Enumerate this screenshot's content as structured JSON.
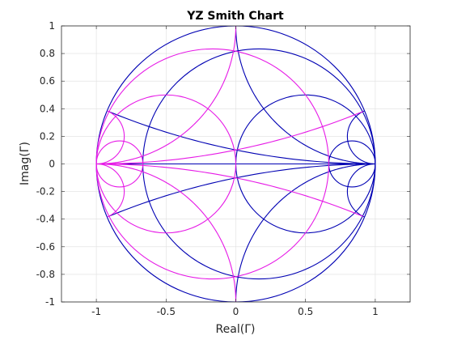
{
  "chart_data": {
    "type": "line",
    "title": "YZ Smith Chart",
    "xlabel": "Real(Γ)",
    "ylabel": "Imag(Γ)",
    "xlim": [
      -1.25,
      1.25
    ],
    "ylim": [
      -1,
      1
    ],
    "xticks": [
      -1,
      -0.5,
      0,
      0.5,
      1
    ],
    "xtick_labels": [
      "-1",
      "-0.5",
      "0",
      "0.5",
      "1"
    ],
    "yticks": [
      -1,
      -0.8,
      -0.6,
      -0.4,
      -0.2,
      0,
      0.2,
      0.4,
      0.6,
      0.8,
      1
    ],
    "ytick_labels": [
      "-1",
      "-0.8",
      "-0.6",
      "-0.4",
      "-0.2",
      "0",
      "0.2",
      "0.4",
      "0.6",
      "0.8",
      "1"
    ],
    "grid": true,
    "aspect": "equal",
    "series": [
      {
        "grid_type": "Z",
        "color": "#0000b3",
        "constant_resistance_circles": [
          0,
          0.2,
          1,
          5
        ],
        "constant_reactance_arcs": [
          0.2,
          -0.2,
          1,
          -1,
          5,
          -5
        ],
        "real_axis_line": true
      },
      {
        "grid_type": "Y",
        "color": "#e619e6",
        "constant_conductance_circles": [
          0.2,
          1,
          5
        ],
        "constant_susceptance_arcs": [
          0.2,
          -0.2,
          1,
          -1,
          5,
          -5
        ]
      }
    ]
  }
}
